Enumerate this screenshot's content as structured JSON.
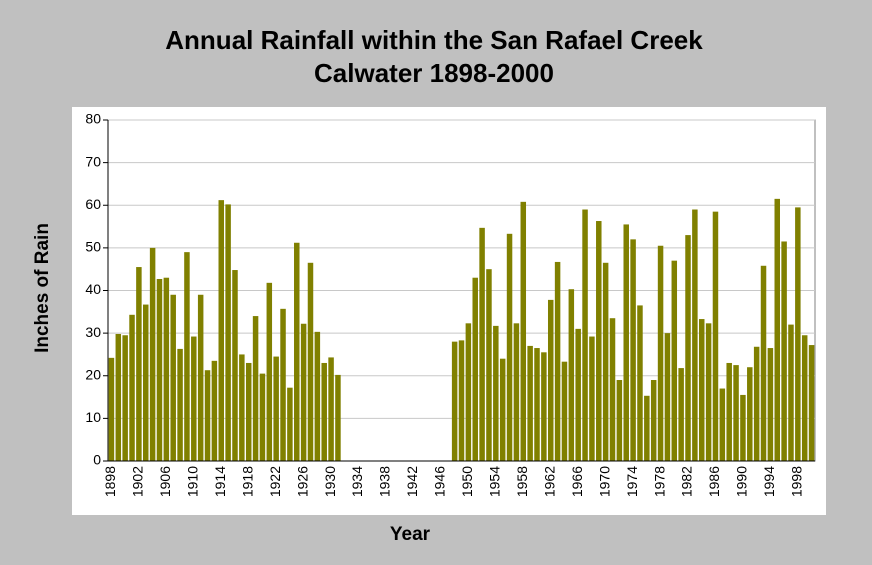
{
  "chart_data": {
    "type": "bar",
    "title": "Annual Rainfall within the San Rafael Creek",
    "subtitle": "Calwater 1898-2000",
    "x_label": "Year",
    "y_label": "Inches of Rain",
    "categories": [
      "1898",
      null,
      null,
      null,
      "1902",
      null,
      null,
      null,
      "1906",
      null,
      null,
      null,
      "1910",
      null,
      null,
      null,
      "1914",
      null,
      null,
      null,
      "1918",
      null,
      null,
      null,
      "1922",
      null,
      null,
      null,
      "1926",
      null,
      null,
      null,
      "1930",
      null,
      null,
      null,
      "1934",
      null,
      null,
      null,
      "1938",
      null,
      null,
      null,
      "1942",
      null,
      null,
      null,
      "1946",
      null,
      null,
      null,
      "1950",
      null,
      null,
      null,
      "1954",
      null,
      null,
      null,
      "1958",
      null,
      null,
      null,
      "1962",
      null,
      null,
      null,
      "1966",
      null,
      null,
      null,
      "1970",
      null,
      null,
      null,
      "1974",
      null,
      null,
      null,
      "1978",
      null,
      null,
      null,
      "1982",
      null,
      null,
      null,
      "1986",
      null,
      null,
      null,
      "1990",
      null,
      null,
      null,
      "1994",
      null,
      null,
      null,
      "1998",
      null,
      null
    ],
    "values": [
      24.2,
      29.8,
      29.5,
      34.3,
      45.5,
      36.7,
      50,
      42.7,
      43,
      39,
      26.3,
      49,
      29.2,
      39,
      21.3,
      23.5,
      61.2,
      60.2,
      44.8,
      25,
      23,
      34,
      20.5,
      41.8,
      24.5,
      35.7,
      17.2,
      51.2,
      32.2,
      46.5,
      30.3,
      23,
      24.3,
      20.2,
      null,
      null,
      null,
      null,
      null,
      null,
      null,
      null,
      null,
      null,
      null,
      null,
      null,
      null,
      null,
      null,
      28,
      28.3,
      32.3,
      43,
      54.7,
      45,
      31.7,
      24,
      53.3,
      32.3,
      60.8,
      27,
      26.5,
      25.5,
      37.8,
      46.7,
      23.3,
      40.3,
      31,
      59,
      29.2,
      56.3,
      46.5,
      33.5,
      19,
      55.5,
      52,
      36.5,
      15.3,
      19,
      50.5,
      30,
      47,
      21.8,
      53,
      59,
      33.3,
      32.3,
      58.5,
      17,
      23,
      22.5,
      15.5,
      22,
      26.8,
      45.8,
      26.5,
      61.5,
      51.5,
      32,
      59.5,
      29.5,
      27.2
    ],
    "color": "#808000",
    "ylim": [
      0,
      80
    ],
    "yticks": [
      0,
      10,
      20,
      30,
      40,
      50,
      60,
      70,
      80
    ],
    "grid": true
  }
}
